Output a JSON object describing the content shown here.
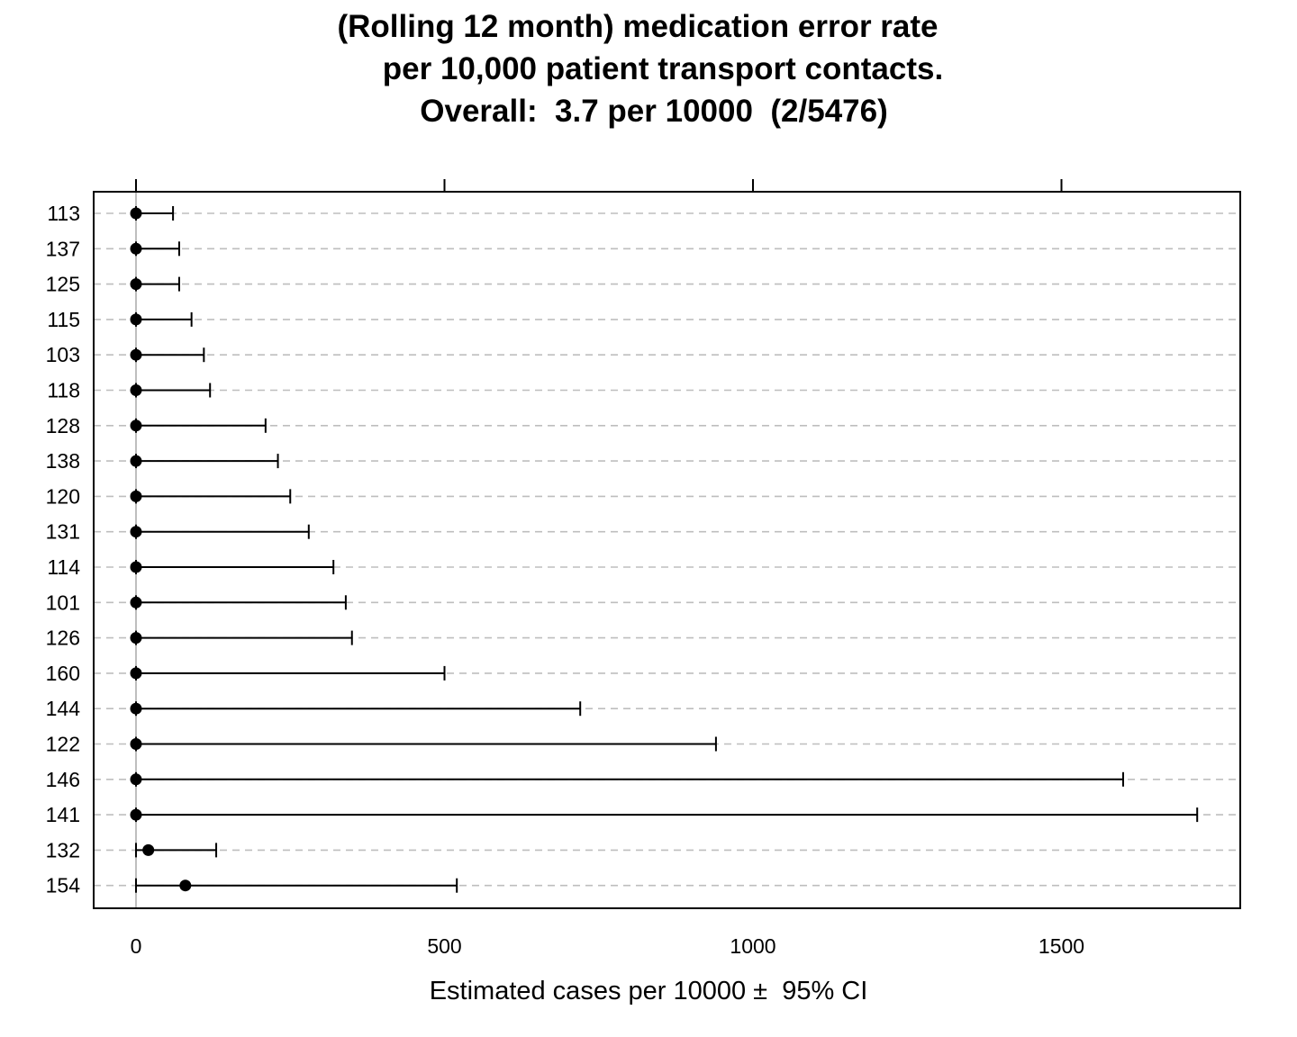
{
  "title": {
    "line1": "(Rolling 12 month) medication error rate",
    "line2": "per 10,000 patient transport contacts.",
    "line3": "Overall:  3.7 per 10000  (2/5476)"
  },
  "chart_data": {
    "type": "dot-errorbar",
    "xlabel": "Estimated cases per 10000 ±  95% CI",
    "xlim": [
      -70,
      1790
    ],
    "xticks": [
      0,
      500,
      1000,
      1500
    ],
    "xtick_labels": [
      "0",
      "500",
      "1000",
      "1500"
    ],
    "grid": "horizontal dashed",
    "reference_line": 0,
    "rows": [
      {
        "label": "113",
        "estimate": 0,
        "lower": 0,
        "upper": 60
      },
      {
        "label": "137",
        "estimate": 0,
        "lower": 0,
        "upper": 70
      },
      {
        "label": "125",
        "estimate": 0,
        "lower": 0,
        "upper": 70
      },
      {
        "label": "115",
        "estimate": 0,
        "lower": 0,
        "upper": 90
      },
      {
        "label": "103",
        "estimate": 0,
        "lower": 0,
        "upper": 110
      },
      {
        "label": "118",
        "estimate": 0,
        "lower": 0,
        "upper": 120
      },
      {
        "label": "128",
        "estimate": 0,
        "lower": 0,
        "upper": 210
      },
      {
        "label": "138",
        "estimate": 0,
        "lower": 0,
        "upper": 230
      },
      {
        "label": "120",
        "estimate": 0,
        "lower": 0,
        "upper": 250
      },
      {
        "label": "131",
        "estimate": 0,
        "lower": 0,
        "upper": 280
      },
      {
        "label": "114",
        "estimate": 0,
        "lower": 0,
        "upper": 320
      },
      {
        "label": "101",
        "estimate": 0,
        "lower": 0,
        "upper": 340
      },
      {
        "label": "126",
        "estimate": 0,
        "lower": 0,
        "upper": 350
      },
      {
        "label": "160",
        "estimate": 0,
        "lower": 0,
        "upper": 500
      },
      {
        "label": "144",
        "estimate": 0,
        "lower": 0,
        "upper": 720
      },
      {
        "label": "122",
        "estimate": 0,
        "lower": 0,
        "upper": 940
      },
      {
        "label": "146",
        "estimate": 0,
        "lower": 0,
        "upper": 1600
      },
      {
        "label": "141",
        "estimate": 0,
        "lower": 0,
        "upper": 1720
      },
      {
        "label": "132",
        "estimate": 20,
        "lower": 0,
        "upper": 130
      },
      {
        "label": "154",
        "estimate": 80,
        "lower": 0,
        "upper": 520
      }
    ]
  },
  "colors": {
    "axis": "#000000",
    "grid": "#bebebe",
    "reference": "#bebebe",
    "point": "#000000"
  }
}
